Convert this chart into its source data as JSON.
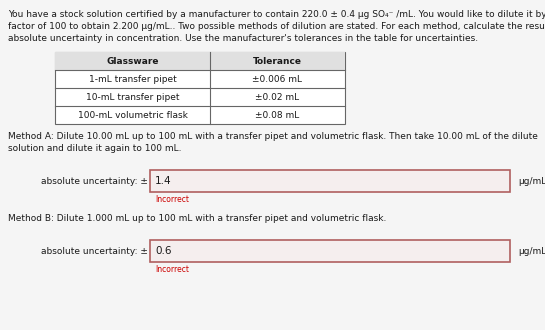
{
  "bg_color": "#f5f5f5",
  "white": "#ffffff",
  "intro_line1": "You have a stock solution certified by a manufacturer to contain 220.0 ± 0.4 μg SO₄⁻ /mL. You would like to dilute it by a",
  "intro_line2": "factor of 100 to obtain 2.200 μg/mL.. Two possible methods of dilution are stated. For each method, calculate the resulting",
  "intro_line3": "absolute uncertainty in concentration. Use the manufacturer's tolerances in the table for uncertainties.",
  "table_headers": [
    "Glassware",
    "Tolerance"
  ],
  "table_rows": [
    [
      "1-mL transfer pipet",
      "±0.006 mL"
    ],
    [
      "10-mL transfer pipet",
      "±0.02 mL"
    ],
    [
      "100-mL volumetric flask",
      "±0.08 mL"
    ]
  ],
  "method_a_line1": "Method A: Dilute 10.00 mL up to 100 mL with a transfer pipet and volumetric flask. Then take 10.00 mL of the dilute",
  "method_a_line2": "solution and dilute it again to 100 mL.",
  "method_b_text": "Method B: Dilute 1.000 mL up to 100 mL with a transfer pipet and volumetric flask.",
  "answer_label": "absolute uncertainty: ±",
  "answer_a_value": "1.4",
  "answer_b_value": "0.6",
  "unit_a": "μg/mL",
  "unit_b": "μg/mL",
  "incorrect_text": "Incorrect",
  "text_color": "#1a1a1a",
  "incorrect_color": "#cc0000",
  "box_border_color": "#b06060",
  "box_fill_color": "#f5eeee",
  "table_border_color": "#666666",
  "table_header_bg": "#e0e0e0",
  "font_size": 6.5,
  "table_font_size": 6.5
}
